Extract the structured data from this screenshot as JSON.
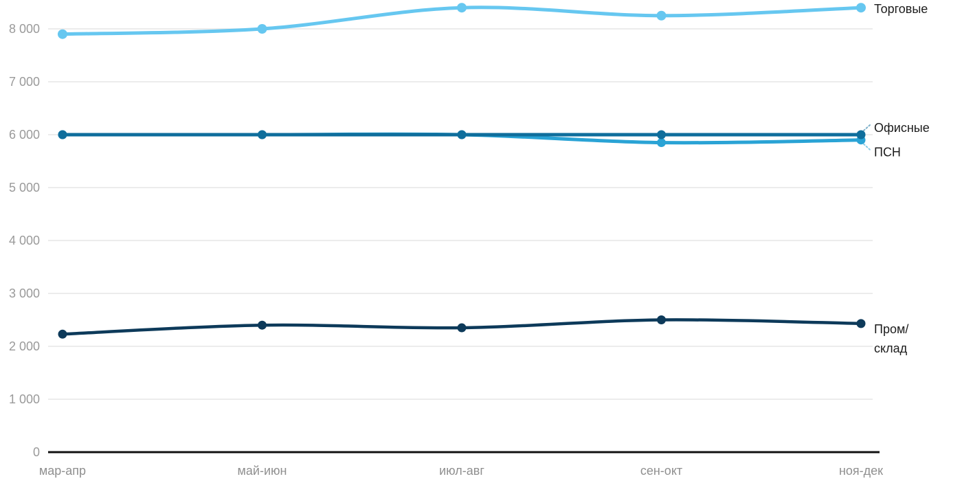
{
  "page": {
    "background": "#ffffff",
    "text_color": "#1c1c1c",
    "axis_label_color": "#9a9a9a",
    "grid_color": "#e6e6e6",
    "zero_axis_color": "#111111"
  },
  "chart_data": {
    "type": "line",
    "title": "",
    "xlabel": "",
    "ylabel": "",
    "grid": true,
    "legend_position": "right-end-labels",
    "ylim": [
      0,
      8500
    ],
    "categories": [
      "мар-апр",
      "май-июн",
      "июл-авг",
      "сен-окт",
      "ноя-дек"
    ],
    "yticks": {
      "values": [
        0,
        1000,
        2000,
        3000,
        4000,
        5000,
        6000,
        7000,
        8000
      ],
      "labels": [
        "0",
        "1 000",
        "2 000",
        "3 000",
        "4 000",
        "5 000",
        "6 000",
        "7 000",
        "8 000"
      ]
    },
    "series": [
      {
        "key": "torgovye",
        "name": "Торговые",
        "color": "#66c7f0",
        "values": [
          7900,
          8000,
          8400,
          8250,
          8400
        ],
        "label_lines": [
          "Торговые"
        ],
        "connector": false,
        "label_offset_y": 2
      },
      {
        "key": "ofisnye",
        "name": "Офисные",
        "color": "#0f6e9c",
        "values": [
          6000,
          6000,
          6000,
          6000,
          6000
        ],
        "label_lines": [
          "Офисные"
        ],
        "connector": true,
        "label_offset_y": -10
      },
      {
        "key": "psn",
        "name": "ПСН",
        "color": "#2aa3d5",
        "values": [
          6000,
          6000,
          6000,
          5850,
          5900
        ],
        "label_lines": [
          "ПСН"
        ],
        "connector": true,
        "label_offset_y": 18
      },
      {
        "key": "prom-sklad",
        "name": "Пром/склад",
        "color": "#0d3a5a",
        "values": [
          2230,
          2400,
          2350,
          2500,
          2430
        ],
        "label_lines": [
          "Пром/",
          "склад"
        ],
        "connector": false,
        "label_offset_y": 8
      }
    ]
  }
}
